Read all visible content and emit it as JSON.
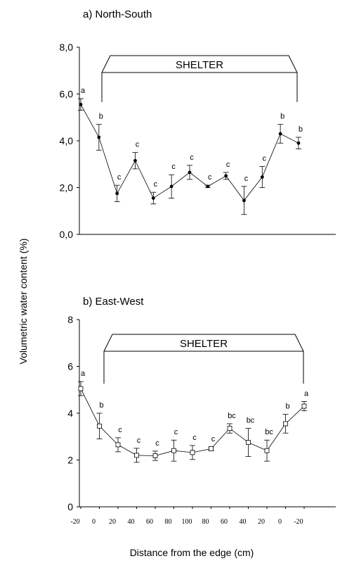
{
  "chart_data": [
    {
      "type": "line",
      "title": "a) North-South",
      "shelter_label": "SHELTER",
      "ylim": [
        0,
        8
      ],
      "y_ticks": [
        "0,0",
        "2,0",
        "4,0",
        "6,0",
        "8,0"
      ],
      "marker": "filled-circle",
      "points": [
        {
          "y": 5.55,
          "err": 0.25,
          "letter": "a"
        },
        {
          "y": 4.15,
          "err": 0.55,
          "letter": "b"
        },
        {
          "y": 1.75,
          "err": 0.35,
          "letter": "c"
        },
        {
          "y": 3.15,
          "err": 0.35,
          "letter": "c"
        },
        {
          "y": 1.55,
          "err": 0.25,
          "letter": "c"
        },
        {
          "y": 2.05,
          "err": 0.5,
          "letter": "c"
        },
        {
          "y": 2.65,
          "err": 0.3,
          "letter": "c"
        },
        {
          "y": 2.05,
          "err": 0.05,
          "letter": "c"
        },
        {
          "y": 2.5,
          "err": 0.15,
          "letter": "c"
        },
        {
          "y": 1.45,
          "err": 0.6,
          "letter": "c"
        },
        {
          "y": 2.45,
          "err": 0.45,
          "letter": "c"
        },
        {
          "y": 4.3,
          "err": 0.4,
          "letter": "b"
        },
        {
          "y": 3.9,
          "err": 0.25,
          "letter": "b"
        }
      ]
    },
    {
      "type": "line",
      "title": "b) East-West",
      "shelter_label": "SHELTER",
      "ylim": [
        0,
        8
      ],
      "y_ticks": [
        "0",
        "2",
        "4",
        "6",
        "8"
      ],
      "x_ticks": [
        "-20",
        "0",
        "20",
        "40",
        "60",
        "80",
        "100",
        "80",
        "60",
        "40",
        "20",
        "0",
        "-20"
      ],
      "marker": "open-square",
      "points": [
        {
          "y": 5.05,
          "err": 0.3,
          "letter": "a"
        },
        {
          "y": 3.45,
          "err": 0.55,
          "letter": "b"
        },
        {
          "y": 2.65,
          "err": 0.3,
          "letter": "c"
        },
        {
          "y": 2.2,
          "err": 0.3,
          "letter": "c"
        },
        {
          "y": 2.18,
          "err": 0.2,
          "letter": "c"
        },
        {
          "y": 2.4,
          "err": 0.45,
          "letter": "c"
        },
        {
          "y": 2.32,
          "err": 0.3,
          "letter": "c"
        },
        {
          "y": 2.48,
          "err": 0.08,
          "letter": "c"
        },
        {
          "y": 3.35,
          "err": 0.2,
          "letter": "bc"
        },
        {
          "y": 2.75,
          "err": 0.6,
          "letter": "bc"
        },
        {
          "y": 2.4,
          "err": 0.45,
          "letter": "bc"
        },
        {
          "y": 3.55,
          "err": 0.4,
          "letter": "b"
        },
        {
          "y": 4.3,
          "err": 0.2,
          "letter": "a"
        }
      ]
    }
  ],
  "ylabel": "Volumetric water content  (%)",
  "xlabel": "Distance from the edge (cm)"
}
